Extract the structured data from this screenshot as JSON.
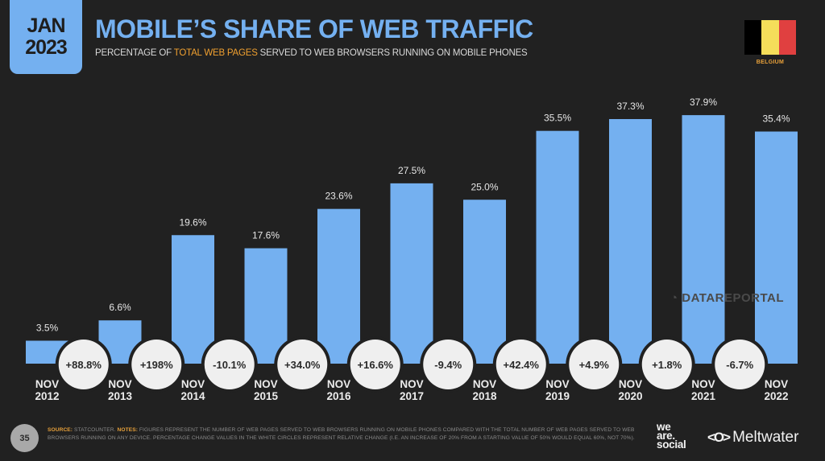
{
  "header": {
    "badge_month": "JAN",
    "badge_year": "2023",
    "title": "MOBILE’S SHARE OF WEB TRAFFIC",
    "subtitle_pre": "PERCENTAGE OF ",
    "subtitle_highlight": "TOTAL WEB PAGES",
    "subtitle_post": " SERVED TO WEB BROWSERS RUNNING ON MOBILE PHONES"
  },
  "flag": {
    "country": "BELGIUM",
    "colors": [
      "#000000",
      "#f5de5a",
      "#e04040"
    ]
  },
  "watermark": "DATAREPORTAL",
  "colors": {
    "bar": "#74b0f0",
    "background": "#212121",
    "circle": "#efefef",
    "accent": "#e8a13a"
  },
  "chart_data": {
    "type": "bar",
    "title": "MOBILE’S SHARE OF WEB TRAFFIC",
    "xlabel": "",
    "ylabel": "",
    "ylim": [
      0,
      40
    ],
    "grid": false,
    "categories": [
      [
        "NOV",
        "2012"
      ],
      [
        "NOV",
        "2013"
      ],
      [
        "NOV",
        "2014"
      ],
      [
        "NOV",
        "2015"
      ],
      [
        "NOV",
        "2016"
      ],
      [
        "NOV",
        "2017"
      ],
      [
        "NOV",
        "2018"
      ],
      [
        "NOV",
        "2019"
      ],
      [
        "NOV",
        "2020"
      ],
      [
        "NOV",
        "2021"
      ],
      [
        "NOV",
        "2022"
      ]
    ],
    "values": [
      3.5,
      6.6,
      19.6,
      17.6,
      23.6,
      27.5,
      25.0,
      35.5,
      37.3,
      37.9,
      35.4
    ],
    "value_labels": [
      "3.5%",
      "6.6%",
      "19.6%",
      "17.6%",
      "23.6%",
      "27.5%",
      "25.0%",
      "35.5%",
      "37.3%",
      "37.9%",
      "35.4%"
    ],
    "change_labels": [
      "+88.8%",
      "+198%",
      "-10.1%",
      "+34.0%",
      "+16.6%",
      "-9.4%",
      "+42.4%",
      "+4.9%",
      "+1.8%",
      "-6.7%"
    ]
  },
  "footer": {
    "page_number": "35",
    "source_key": "SOURCE:",
    "source_text": " STATCOUNTER. ",
    "notes_key": "NOTES:",
    "notes_text": " FIGURES REPRESENT THE NUMBER OF WEB PAGES SERVED TO WEB BROWSERS RUNNING ON MOBILE PHONES COMPARED WITH THE TOTAL NUMBER OF WEB PAGES SERVED TO WEB BROWSERS RUNNING ON ANY DEVICE. PERCENTAGE CHANGE VALUES IN THE WHITE CIRCLES REPRESENT RELATIVE CHANGE (I.E. AN INCREASE OF 20% FROM A STARTING VALUE OF 50% WOULD EQUAL 60%, NOT 70%).",
    "logo_we": "we",
    "logo_are": "are.",
    "logo_social": "social",
    "logo_meltwater": "Meltwater",
    "logo_meltwater_mark": "<O>"
  }
}
